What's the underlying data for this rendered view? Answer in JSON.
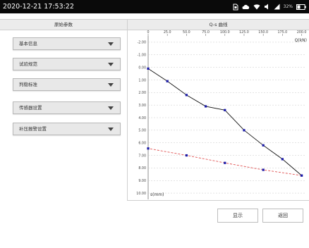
{
  "status_bar": {
    "datetime": "2020-12-21 17:53:22",
    "battery": "32%"
  },
  "left_panel": {
    "title": "原始参数",
    "dropdowns": [
      {
        "label": "基本信息"
      },
      {
        "label": "试验规范"
      },
      {
        "label": "判稳标准"
      },
      {
        "label": "传感器设置"
      },
      {
        "label": "补压报警设置"
      }
    ]
  },
  "right_panel": {
    "title": "Q-s 曲线"
  },
  "chart_data": {
    "type": "line",
    "title": "Q-s 曲线",
    "xlabel": "Q(kN)",
    "ylabel": "s(mm)",
    "x_ticks": [
      "0",
      "25.0",
      "50.0",
      "75.0",
      "100.0",
      "125.0",
      "150.0",
      "175.0",
      "200.0"
    ],
    "y_ticks": [
      "-2.00",
      "-1.00",
      "0.00",
      "1.00",
      "2.00",
      "3.00",
      "4.00",
      "5.00",
      "6.00",
      "7.00",
      "8.00",
      "9.00",
      "10.00"
    ],
    "xlim": [
      0,
      205
    ],
    "ylim": [
      -2.5,
      10.5
    ],
    "series": [
      {
        "color": "#111111",
        "style": "solid",
        "x": [
          0,
          25,
          50,
          75,
          100,
          125,
          150,
          175,
          200
        ],
        "y": [
          0.1,
          1.1,
          2.2,
          3.1,
          3.4,
          5.0,
          6.2,
          7.3,
          8.6
        ]
      },
      {
        "color": "#e05050",
        "style": "dashed",
        "x": [
          200,
          150,
          100,
          50,
          0
        ],
        "y": [
          8.6,
          8.15,
          7.6,
          7.0,
          6.45
        ]
      }
    ]
  },
  "buttons": {
    "display": "显示",
    "back": "返回"
  }
}
